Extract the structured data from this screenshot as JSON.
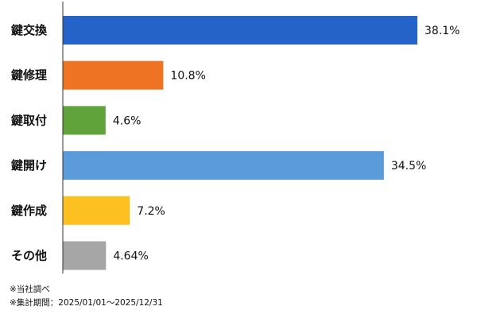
{
  "chart_data": {
    "type": "bar",
    "orientation": "horizontal",
    "categories": [
      "鍵交換",
      "鍵修理",
      "鍵取付",
      "鍵開け",
      "鍵作成",
      "その他"
    ],
    "values": [
      38.1,
      10.8,
      4.6,
      34.5,
      7.2,
      4.64
    ],
    "value_labels": [
      "38.1%",
      "10.8%",
      "4.6%",
      "34.5%",
      "7.2%",
      "4.64%"
    ],
    "colors": [
      "#2563c8",
      "#ee7423",
      "#5fa33a",
      "#5b9bd9",
      "#fcc020",
      "#a6a6a6"
    ],
    "xlim": [
      0,
      40
    ],
    "grid": false,
    "legend": "none"
  },
  "footnotes": {
    "source": "※当社調べ",
    "period": "※集計期間：2025/01/01〜2025/12/31"
  }
}
